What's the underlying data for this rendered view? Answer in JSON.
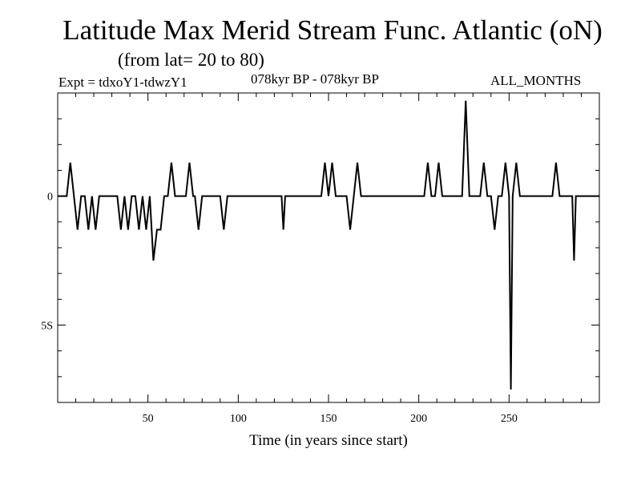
{
  "header": {
    "title": "Latitude Max Merid Stream Func. Atlantic (oN)",
    "subtitle": "(from lat= 20 to 80)",
    "expt": "Expt = tdxoY1-tdwzY1",
    "period": "078kyr BP - 078kyr BP",
    "months": "ALL_MONTHS"
  },
  "chart_data": {
    "type": "line",
    "title": "Latitude Max Merid Stream Func. Atlantic (oN)",
    "subtitle": "(from lat= 20 to 80)",
    "xlabel": "Time (in years since start)",
    "ylabel": "",
    "xlim": [
      0,
      300
    ],
    "ylim": [
      -8,
      4
    ],
    "x_ticks": [
      50,
      100,
      150,
      200,
      250
    ],
    "x_tick_labels": [
      "50",
      "100",
      "150",
      "200",
      "250"
    ],
    "y_ticks": [
      0,
      -5
    ],
    "y_tick_labels": [
      "0",
      "5S"
    ],
    "grid": false,
    "line_color": "#000000",
    "series": [
      {
        "x": [
          0,
          5,
          7,
          9,
          11,
          13,
          15,
          17,
          19,
          21,
          23,
          33,
          35,
          37,
          39,
          41,
          43,
          45,
          47,
          49,
          51,
          53,
          55,
          57,
          59,
          61,
          63,
          65,
          71,
          73,
          75,
          76,
          78,
          80,
          90,
          92,
          94,
          124,
          125,
          126,
          146,
          148,
          150,
          152,
          154,
          160,
          162,
          164,
          166,
          168,
          203,
          205,
          207,
          209,
          211,
          213,
          224,
          226,
          228,
          234,
          236,
          238,
          240,
          242,
          244,
          246,
          248,
          250,
          251,
          252,
          254,
          256,
          258,
          274,
          276,
          278,
          284,
          285,
          286,
          287,
          288,
          300
        ],
        "y": [
          0,
          0,
          1.3,
          0,
          -1.3,
          0,
          0,
          -1.3,
          0,
          -1.3,
          0,
          0,
          -1.3,
          0,
          -1.3,
          0,
          0,
          -1.3,
          0,
          -1.3,
          0,
          -2.5,
          -1.3,
          -1.3,
          0,
          0,
          1.3,
          0,
          0,
          1.3,
          0,
          0,
          -1.3,
          0,
          0,
          -1.3,
          0,
          0,
          -1.3,
          0,
          0,
          1.3,
          0,
          1.3,
          0,
          0,
          -1.3,
          0,
          1.3,
          0,
          0,
          1.3,
          0,
          0,
          1.3,
          0,
          0,
          3.7,
          0,
          0,
          1.3,
          0,
          0,
          -1.3,
          0,
          0,
          1.3,
          0,
          -7.5,
          0,
          1.3,
          0,
          0,
          0,
          1.3,
          0,
          0,
          0,
          -2.5,
          0,
          0,
          0
        ]
      }
    ]
  }
}
